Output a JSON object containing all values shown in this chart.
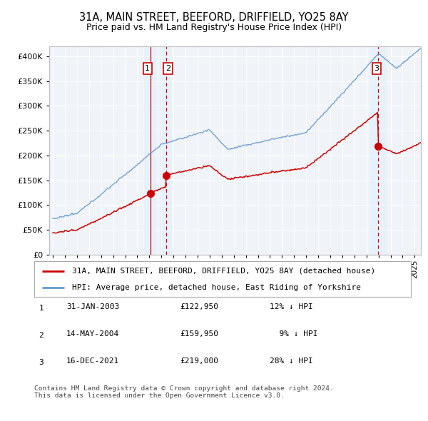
{
  "title": "31A, MAIN STREET, BEEFORD, DRIFFIELD, YO25 8AY",
  "subtitle": "Price paid vs. HM Land Registry's House Price Index (HPI)",
  "title_fontsize": 10.5,
  "subtitle_fontsize": 9,
  "ylim": [
    0,
    420000
  ],
  "yticks": [
    0,
    50000,
    100000,
    150000,
    200000,
    250000,
    300000,
    350000,
    400000
  ],
  "hpi_color": "#6699cc",
  "price_color": "#cc0000",
  "bg_color": "#ffffff",
  "plot_bg_color": "#f0f4f8",
  "grid_color": "#ffffff",
  "shade_color": "#ddeeff",
  "vline_solid_color": "#cc0000",
  "vline_dash_color": "#cc0000",
  "legend_line1": "31A, MAIN STREET, BEEFORD, DRIFFIELD, YO25 8AY (detached house)",
  "legend_line2": "HPI: Average price, detached house, East Riding of Yorkshire",
  "table_rows": [
    {
      "num": "1",
      "date": "31-JAN-2003",
      "price": "£122,950",
      "pct": "12% ↓ HPI"
    },
    {
      "num": "2",
      "date": "14-MAY-2004",
      "price": "£159,950",
      "pct": "  9% ↓ HPI"
    },
    {
      "num": "3",
      "date": "16-DEC-2021",
      "price": "£219,000",
      "pct": "28% ↓ HPI"
    }
  ],
  "footer": "Contains HM Land Registry data © Crown copyright and database right 2024.\nThis data is licensed under the Open Government Licence v3.0.",
  "sale_t": [
    2003.08,
    2004.37,
    2021.96
  ],
  "sale_p": [
    122950,
    159950,
    219000
  ],
  "label_positions": [
    {
      "x": 2002.85,
      "label": "1"
    },
    {
      "x": 2004.55,
      "label": "2"
    },
    {
      "x": 2021.85,
      "label": "3"
    }
  ]
}
